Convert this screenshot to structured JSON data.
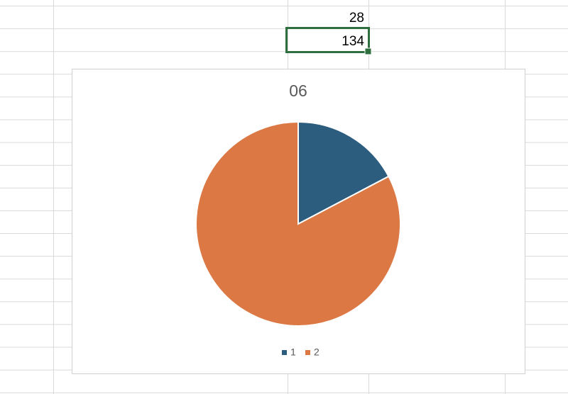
{
  "chart_data": {
    "type": "pie",
    "title": "06",
    "categories": [
      "1",
      "2"
    ],
    "values": [
      28,
      134
    ],
    "colors": [
      "#2c5d7f",
      "#dc7843"
    ],
    "legend": "bottom"
  }
}
